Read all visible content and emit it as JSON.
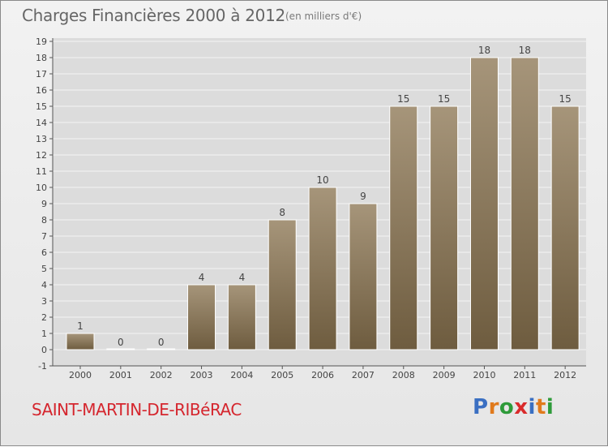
{
  "header": {
    "title": "Charges Financières 2000 à 2012",
    "unit": "(en milliers d'€)"
  },
  "footer": {
    "commune": "SAINT-MARTIN-DE-RIBéRAC",
    "brand": "Proxiti"
  },
  "colors": {
    "bar_top": "#a6957a",
    "bar_bottom": "#6e5c3f",
    "grid": "#f4f4f4",
    "plot_bg": "#dcdcdc",
    "brand_letters": [
      "#3a6fc2",
      "#e07a1c",
      "#2e9b3a",
      "#d92b2b",
      "#3a6fc2",
      "#e07a1c",
      "#2e9b3a"
    ]
  },
  "chart_data": {
    "type": "bar",
    "title": "Charges Financières 2000 à 2012",
    "subtitle": "(en milliers d'€)",
    "categories": [
      "2000",
      "2001",
      "2002",
      "2003",
      "2004",
      "2005",
      "2006",
      "2007",
      "2008",
      "2009",
      "2010",
      "2011",
      "2012"
    ],
    "values": [
      1,
      0,
      0,
      4,
      4,
      8,
      10,
      9,
      15,
      15,
      18,
      18,
      15
    ],
    "ylim": [
      -1,
      19
    ],
    "yticks": [
      -1,
      0,
      1,
      2,
      3,
      4,
      5,
      6,
      7,
      8,
      9,
      10,
      11,
      12,
      13,
      14,
      15,
      16,
      17,
      18,
      19
    ],
    "grid": true,
    "show_value_labels": true
  }
}
